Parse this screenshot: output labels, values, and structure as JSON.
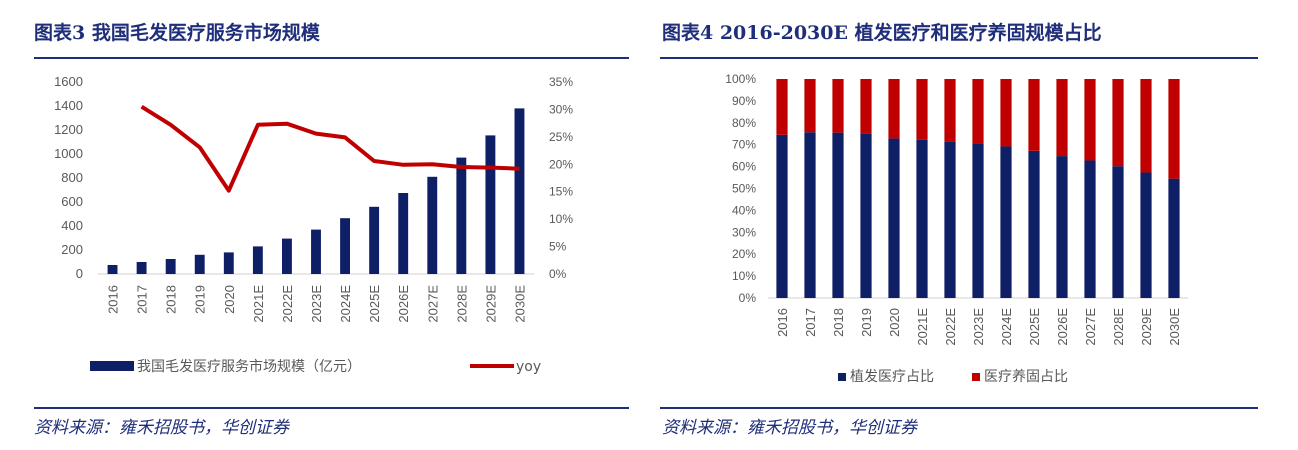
{
  "left_panel": {
    "title": "图表3  我国毛发医疗服务市场规模",
    "source": "资料来源：雍禾招股书，华创证券"
  },
  "right_panel": {
    "title": "图表4  2016-2030E 植发医疗和医疗养固规模占比",
    "source": "资料来源：雍禾招股书，华创证券"
  },
  "colors": {
    "navy": "#0e1f66",
    "red": "#c00000",
    "title": "#1f2e7a"
  },
  "chart_data": [
    {
      "type": "bar+line",
      "categories": [
        "2016",
        "2017",
        "2018",
        "2019",
        "2020",
        "2021E",
        "2022E",
        "2023E",
        "2024E",
        "2025E",
        "2026E",
        "2027E",
        "2028E",
        "2029E",
        "2030E"
      ],
      "y_ticks": [
        "0",
        "200",
        "400",
        "600",
        "800",
        "1000",
        "1200",
        "1400",
        "1600"
      ],
      "y2_ticks": [
        "0%",
        "5%",
        "10%",
        "15%",
        "20%",
        "25%",
        "30%",
        "35%"
      ],
      "ylim": [
        0,
        1600
      ],
      "y2lim": [
        0,
        35
      ],
      "series": [
        {
          "name": "我国毛发医疗服务市场规模（亿元）",
          "kind": "bar",
          "color": "#0e1f66",
          "values": [
            75,
            100,
            125,
            160,
            180,
            230,
            295,
            370,
            465,
            560,
            675,
            810,
            970,
            1155,
            1380
          ]
        },
        {
          "name": "yoy",
          "kind": "line",
          "axis": "y2",
          "color": "#c00000",
          "values": [
            null,
            30.5,
            27.2,
            23.1,
            15.2,
            27.2,
            27.4,
            25.6,
            24.9,
            20.6,
            19.9,
            20.0,
            19.5,
            19.4,
            19.2
          ]
        }
      ],
      "legend_position": "bottom"
    },
    {
      "type": "stacked-bar",
      "categories": [
        "2016",
        "2017",
        "2018",
        "2019",
        "2020",
        "2021E",
        "2022E",
        "2023E",
        "2024E",
        "2025E",
        "2026E",
        "2027E",
        "2028E",
        "2029E",
        "2030E"
      ],
      "y_ticks": [
        "0%",
        "10%",
        "20%",
        "30%",
        "40%",
        "50%",
        "60%",
        "70%",
        "80%",
        "90%",
        "100%"
      ],
      "ylim": [
        0,
        100
      ],
      "series": [
        {
          "name": "植发医疗占比",
          "color": "#0e1f66",
          "values": [
            74.5,
            75.7,
            75.5,
            75.2,
            72.8,
            72.3,
            71.4,
            70.6,
            69.2,
            67.2,
            64.8,
            62.8,
            60.2,
            57.3,
            54.5
          ]
        },
        {
          "name": "医疗养固占比",
          "color": "#c00000",
          "values": [
            25.5,
            24.3,
            24.5,
            24.8,
            27.2,
            27.7,
            28.6,
            29.4,
            30.8,
            32.8,
            35.2,
            37.2,
            39.8,
            42.7,
            45.5
          ]
        }
      ],
      "legend_position": "bottom"
    }
  ]
}
